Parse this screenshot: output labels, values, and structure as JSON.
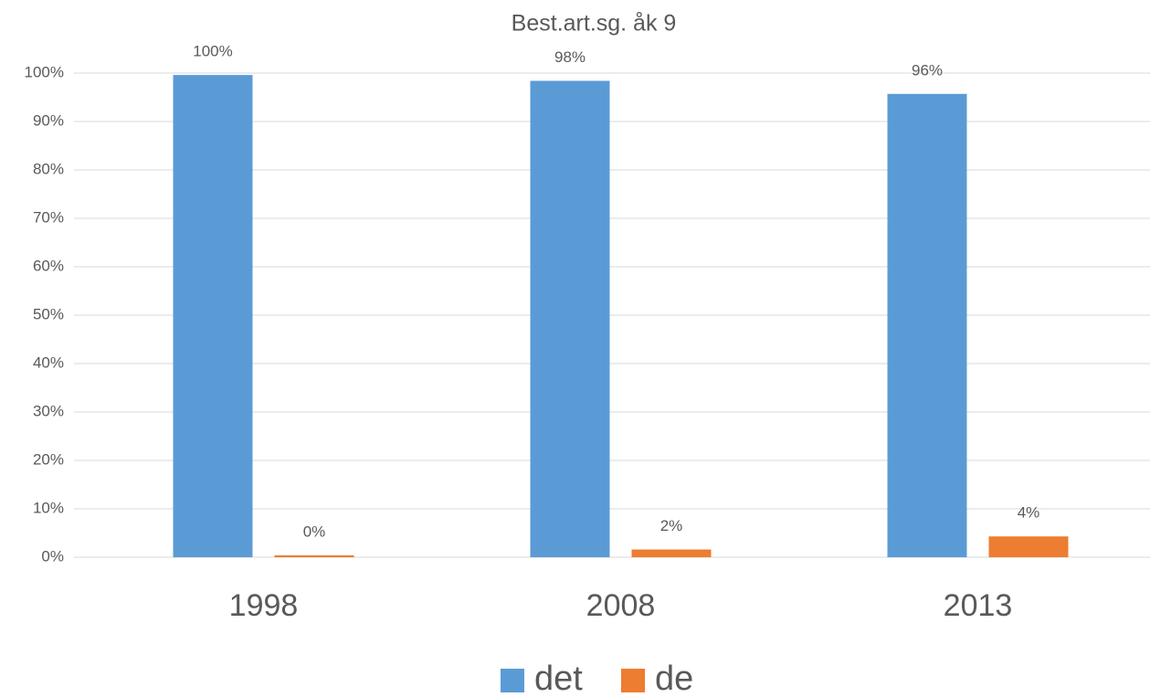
{
  "chart_data": {
    "type": "bar",
    "title": "Best.art.sg. åk 9",
    "categories": [
      "1998",
      "2008",
      "2013"
    ],
    "series": [
      {
        "name": "det",
        "color": "#5b9bd5",
        "values": [
          99.6,
          98.4,
          95.7
        ],
        "value_labels": [
          "100%",
          "98%",
          "96%"
        ]
      },
      {
        "name": "de",
        "color": "#ed7d31",
        "values": [
          0.4,
          1.6,
          4.3
        ],
        "value_labels": [
          "0%",
          "2%",
          "4%"
        ]
      }
    ],
    "ylim": [
      0,
      100
    ],
    "yticks": [
      {
        "value": 0,
        "label": "0%"
      },
      {
        "value": 10,
        "label": "10%"
      },
      {
        "value": 20,
        "label": "20%"
      },
      {
        "value": 30,
        "label": "30%"
      },
      {
        "value": 40,
        "label": "40%"
      },
      {
        "value": 50,
        "label": "50%"
      },
      {
        "value": 60,
        "label": "60%"
      },
      {
        "value": 70,
        "label": "70%"
      },
      {
        "value": 80,
        "label": "80%"
      },
      {
        "value": 90,
        "label": "90%"
      },
      {
        "value": 100,
        "label": "100%"
      }
    ],
    "grid": true,
    "legend": "bottom"
  }
}
